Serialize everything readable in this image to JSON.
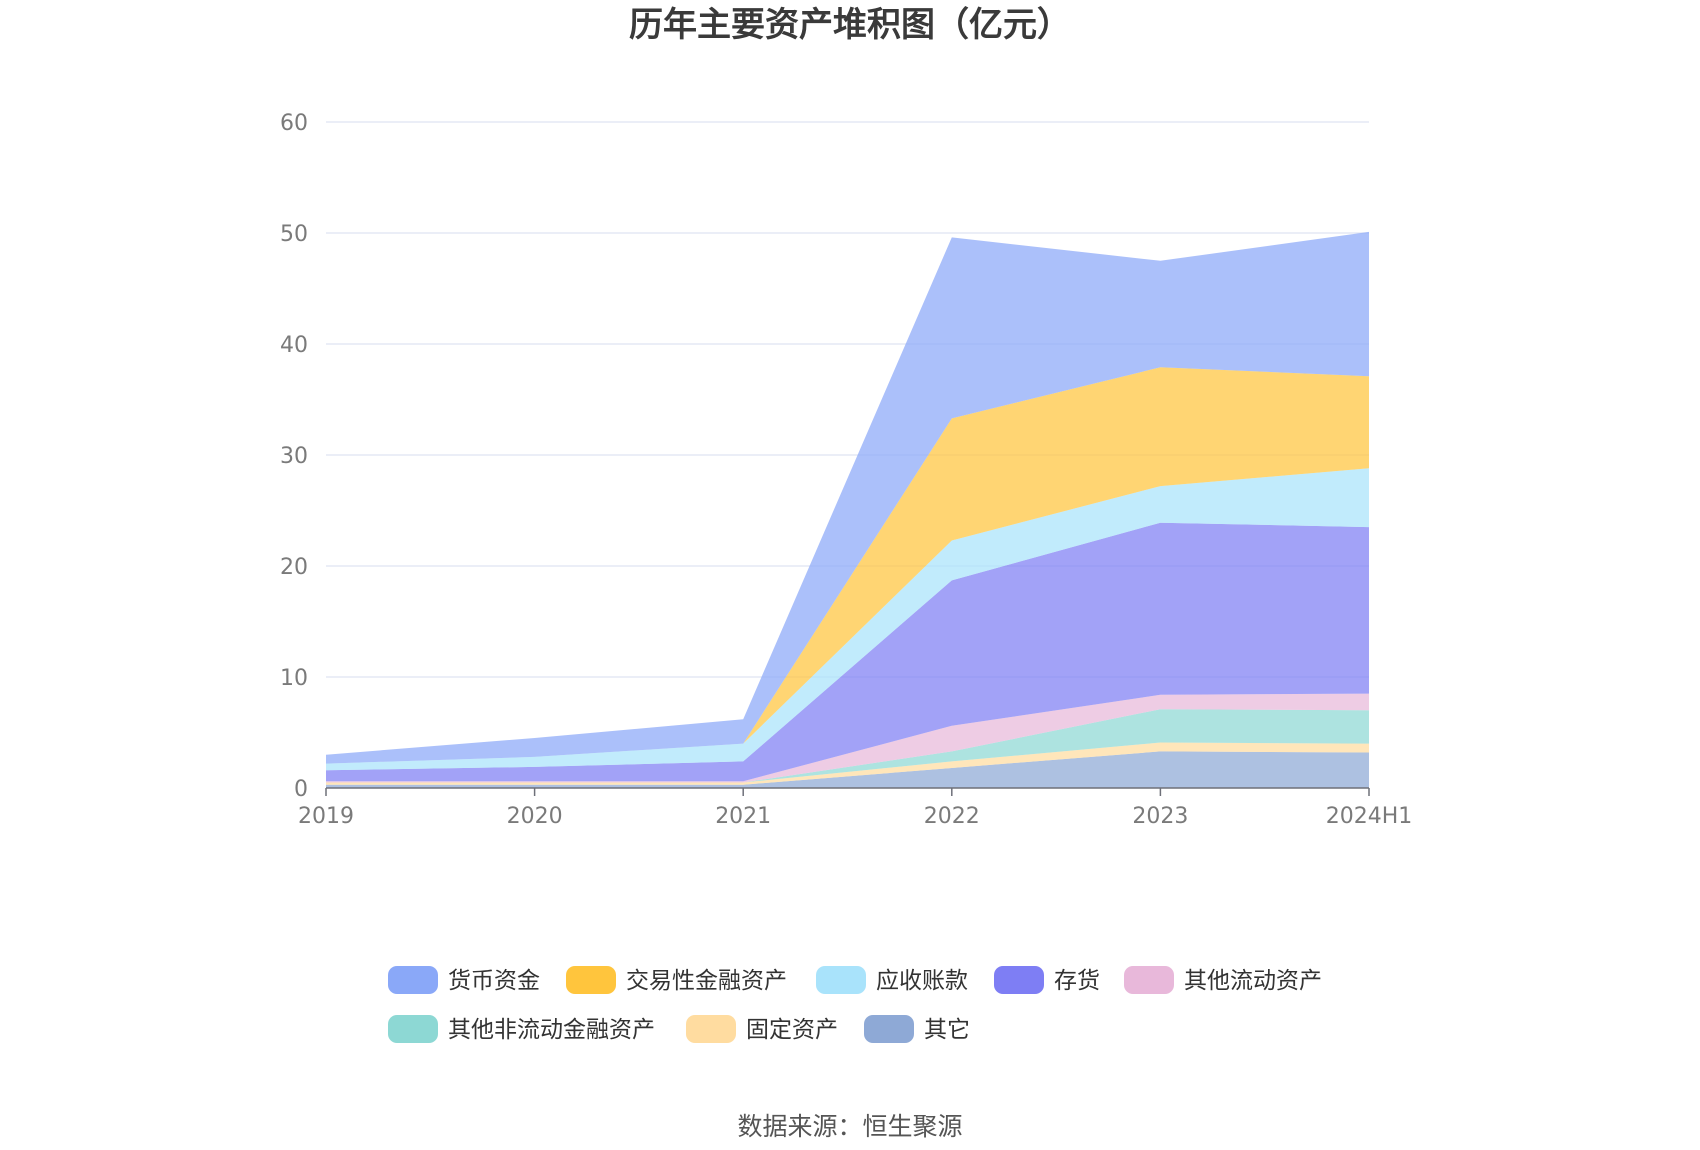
{
  "chart_data": {
    "type": "area",
    "stacked": true,
    "title": "历年主要资产堆积图（亿元）",
    "source": "数据来源：恒生聚源",
    "x": [
      "2019",
      "2020",
      "2021",
      "2022",
      "2023",
      "2024H1"
    ],
    "ylim": [
      0,
      60
    ],
    "yticks": [
      "0",
      "10",
      "20",
      "30",
      "40",
      "50",
      "60"
    ],
    "grid": true,
    "legend_position": "bottom",
    "series": [
      {
        "name": "其它",
        "color": "#8ea9d6",
        "values": [
          0.3,
          0.3,
          0.3,
          1.8,
          3.3,
          3.2
        ]
      },
      {
        "name": "固定资产",
        "color": "#ffdca0",
        "values": [
          0.2,
          0.2,
          0.2,
          0.6,
          0.8,
          0.8
        ]
      },
      {
        "name": "其他非流动金融资产",
        "color": "#8dd8d4",
        "values": [
          0.0,
          0.0,
          0.0,
          0.9,
          3.0,
          3.0
        ]
      },
      {
        "name": "其他流动资产",
        "color": "#e8b8da",
        "values": [
          0.1,
          0.1,
          0.1,
          2.3,
          1.3,
          1.5
        ]
      },
      {
        "name": "存货",
        "color": "#7e7ef4",
        "values": [
          1.0,
          1.3,
          1.8,
          13.1,
          15.5,
          15.0
        ]
      },
      {
        "name": "应收账款",
        "color": "#a9e3fb",
        "values": [
          0.6,
          0.9,
          1.6,
          3.6,
          3.3,
          5.3
        ]
      },
      {
        "name": "交易性金融资产",
        "color": "#ffc53d",
        "values": [
          0.0,
          0.0,
          0.0,
          11.0,
          10.7,
          8.3
        ]
      },
      {
        "name": "货币资金",
        "color": "#8aa8f8",
        "values": [
          0.8,
          1.7,
          2.2,
          16.3,
          9.6,
          13.0
        ]
      }
    ],
    "legend_order": [
      "货币资金",
      "交易性金融资产",
      "应收账款",
      "存货",
      "其他流动资产",
      "其他非流动金融资产",
      "固定资产",
      "其它"
    ]
  }
}
